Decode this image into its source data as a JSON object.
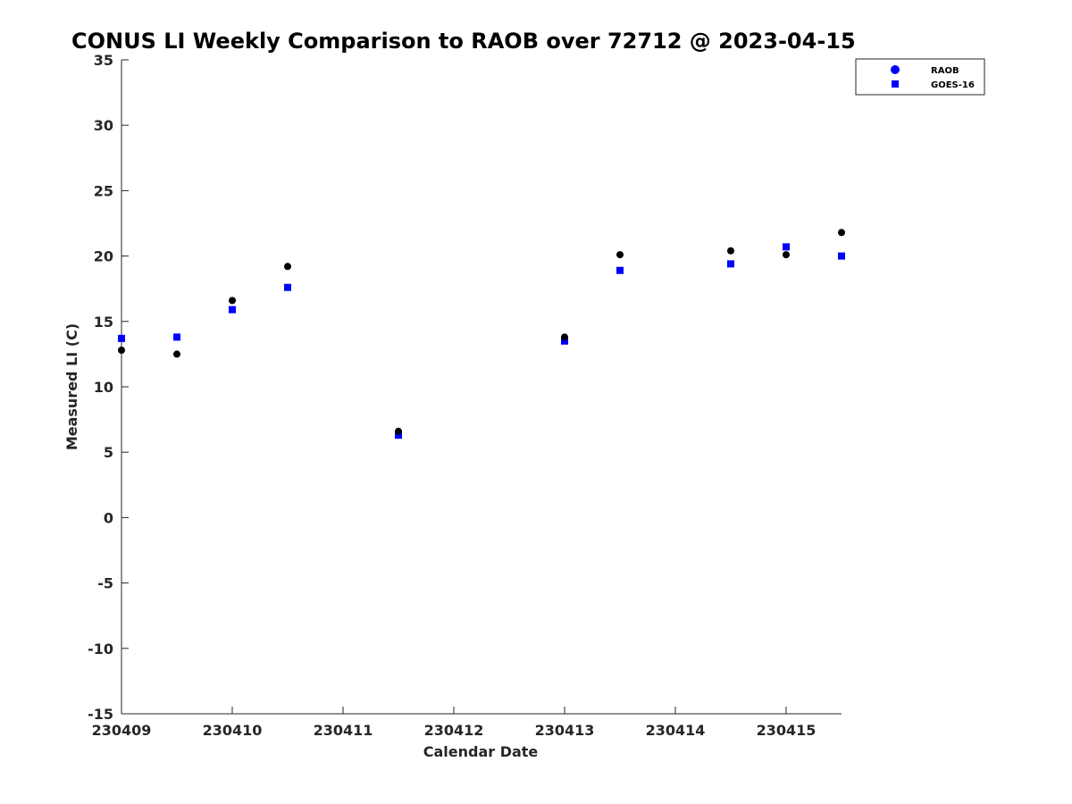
{
  "chart_data": {
    "type": "scatter",
    "title": "CONUS LI Weekly Comparison to RAOB over 72712 @ 2023-04-15",
    "xlabel": "Calendar Date",
    "ylabel": "Measured LI (C)",
    "xlim": [
      230409,
      230415.5
    ],
    "ylim": [
      -15,
      35
    ],
    "xticks": [
      230409,
      230410,
      230411,
      230412,
      230413,
      230414,
      230415
    ],
    "yticks": [
      -15,
      -10,
      -5,
      0,
      5,
      10,
      15,
      20,
      25,
      30,
      35
    ],
    "grid": false,
    "legend_position": "top-right",
    "series": [
      {
        "name": "RAOB",
        "marker": "circle",
        "legend_color": "#0000ff",
        "color": "#000000",
        "x": [
          230409,
          230409.5,
          230410,
          230410.5,
          230411.5,
          230413,
          230413.5,
          230414.5,
          230415,
          230415.5
        ],
        "y": [
          12.8,
          12.5,
          16.6,
          19.2,
          6.6,
          13.8,
          20.1,
          20.4,
          20.1,
          21.8
        ]
      },
      {
        "name": "GOES-16",
        "marker": "square",
        "color": "#0000ff",
        "x": [
          230409,
          230409.5,
          230410,
          230410.5,
          230411.5,
          230413,
          230413.5,
          230414.5,
          230415,
          230415.5
        ],
        "y": [
          13.7,
          13.8,
          15.9,
          17.6,
          6.3,
          13.5,
          18.9,
          19.4,
          20.7,
          20.0
        ]
      }
    ]
  }
}
